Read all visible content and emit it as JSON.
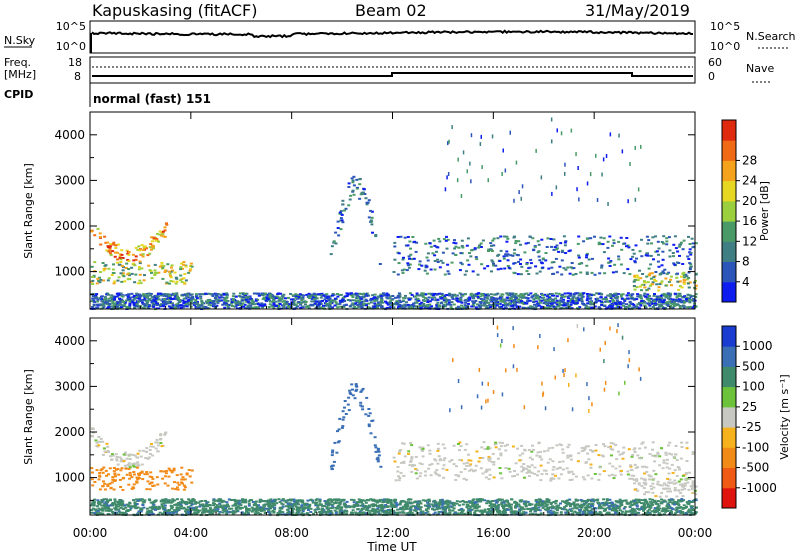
{
  "header": {
    "station": "Kapuskasing (fitACF)",
    "beam": "Beam 02",
    "date": "31/May/2019"
  },
  "sky_panel": {
    "left_label": "N.Sky",
    "left_ticks": [
      "10^5",
      "10^0"
    ],
    "right_ticks": [
      "10^5",
      "10^0"
    ],
    "right_label": "N.Search"
  },
  "freq_panel": {
    "left_label_1": "Freq.",
    "left_label_2": "[MHz]",
    "left_ticks": [
      "18",
      "8"
    ],
    "right_ticks": [
      "60",
      "0"
    ],
    "right_label": "Nave",
    "cpid_label": "CPID",
    "mode_text": "normal (fast) 151"
  },
  "chart_data": [
    {
      "type": "heatmap",
      "title": "",
      "xlabel": "",
      "ylabel": "Slant Range [km]",
      "xlim": [
        0,
        24
      ],
      "ylim": [
        180,
        4500
      ],
      "yticks": [
        "1000",
        "2000",
        "3000",
        "4000"
      ],
      "colorbar_label": "Power [dB]",
      "colorbar_ticks": [
        "4",
        "8",
        "12",
        "16",
        "20",
        "24",
        "28"
      ],
      "colorbar_colors": [
        "#0d1df0",
        "#2b55b8",
        "#3f7f84",
        "#4a9a68",
        "#9ccf3e",
        "#e6d822",
        "#f5a21c",
        "#f06a16",
        "#e02a10"
      ],
      "features": [
        {
          "name": "morning arc",
          "t_start": 0.0,
          "t_end": 3.0,
          "range_min": 1350,
          "range_max": 2100,
          "level": "strong"
        },
        {
          "name": "low band",
          "t_start": 0.0,
          "t_end": 4.0,
          "range_min": 750,
          "range_max": 1250,
          "level": "moderate"
        },
        {
          "name": "near-range clutter",
          "t_start": 0.0,
          "t_end": 24.0,
          "range_min": 200,
          "range_max": 550,
          "level": "weak"
        },
        {
          "name": "midday streak",
          "t_start": 9.5,
          "t_end": 11.5,
          "range_min": 1200,
          "range_max": 2900,
          "level": "weak"
        },
        {
          "name": "afternoon band",
          "t_start": 12.0,
          "t_end": 24.0,
          "range_min": 950,
          "range_max": 1800,
          "level": "weak"
        },
        {
          "name": "evening patch",
          "t_start": 21.5,
          "t_end": 24.0,
          "range_min": 600,
          "range_max": 1000,
          "level": "moderate"
        }
      ]
    },
    {
      "type": "heatmap",
      "title": "",
      "xlabel": "Time UT",
      "ylabel": "Slant Range [km]",
      "xlim": [
        0,
        24
      ],
      "ylim": [
        180,
        4500
      ],
      "xticks": [
        "00:00",
        "04:00",
        "08:00",
        "12:00",
        "16:00",
        "20:00",
        "00:00"
      ],
      "yticks": [
        "1000",
        "2000",
        "3000",
        "4000"
      ],
      "colorbar_label": "Velocity [m s⁻¹]",
      "colorbar_ticks": [
        "1000",
        "500",
        "100",
        "25",
        "-25",
        "-100",
        "-500",
        "-1000"
      ],
      "colorbar_colors": [
        "#1a3cd0",
        "#3a6fb5",
        "#3f8a6a",
        "#6cc23a",
        "#c8c8c3",
        "#f5b21c",
        "#f28a18",
        "#f05a14",
        "#e0140f"
      ],
      "features": [
        {
          "name": "ground scatter arc",
          "t_start": 0.0,
          "t_end": 3.0,
          "range_min": 1350,
          "range_max": 2100,
          "velocity": 0
        },
        {
          "name": "receding band",
          "t_start": 0.0,
          "t_end": 4.0,
          "range_min": 750,
          "range_max": 1250,
          "velocity": -300
        },
        {
          "name": "near-range scatter",
          "t_start": 0.0,
          "t_end": 24.0,
          "range_min": 200,
          "range_max": 550,
          "velocity": 80
        },
        {
          "name": "midday streak",
          "t_start": 9.5,
          "t_end": 11.5,
          "range_min": 1200,
          "range_max": 2900,
          "velocity": 300
        },
        {
          "name": "afternoon ground scatter",
          "t_start": 12.0,
          "t_end": 24.0,
          "range_min": 950,
          "range_max": 1800,
          "velocity": 0
        },
        {
          "name": "evening ground scatter",
          "t_start": 21.5,
          "t_end": 24.0,
          "range_min": 600,
          "range_max": 1000,
          "velocity": 0
        }
      ]
    }
  ]
}
